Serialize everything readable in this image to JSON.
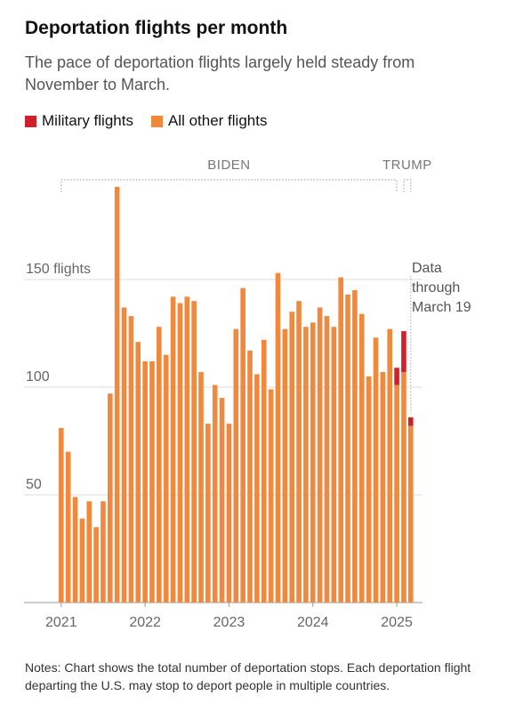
{
  "header": {
    "title": "Deportation flights per month",
    "subtitle": "The pace of deportation flights largely held steady from November to March."
  },
  "legend": [
    {
      "label": "Military flights",
      "color": "#d0202a"
    },
    {
      "label": "All other flights",
      "color": "#f0883e"
    }
  ],
  "colors": {
    "military": "#d0202a",
    "other": "#f0883e",
    "grid": "#dddddd",
    "bracket": "#aaaaaa",
    "axis_text": "#666666"
  },
  "periods": [
    {
      "label": "BIDEN",
      "start_index": 0,
      "end_index": 48
    },
    {
      "label": "TRUMP",
      "start_index": 49,
      "end_index": 50
    }
  ],
  "annotation": {
    "lines": [
      "Data",
      "through",
      "March 19"
    ],
    "index": 50
  },
  "notes": "Notes: Chart shows the total number of deportation stops. Each deportation flight departing the U.S. may stop to deport people in multiple countries.",
  "chart_data": {
    "type": "bar",
    "stacked": true,
    "x_start": "2021-01",
    "categories": [
      "2021-01",
      "2021-02",
      "2021-03",
      "2021-04",
      "2021-05",
      "2021-06",
      "2021-07",
      "2021-08",
      "2021-09",
      "2021-10",
      "2021-11",
      "2021-12",
      "2022-01",
      "2022-02",
      "2022-03",
      "2022-04",
      "2022-05",
      "2022-06",
      "2022-07",
      "2022-08",
      "2022-09",
      "2022-10",
      "2022-11",
      "2022-12",
      "2023-01",
      "2023-02",
      "2023-03",
      "2023-04",
      "2023-05",
      "2023-06",
      "2023-07",
      "2023-08",
      "2023-09",
      "2023-10",
      "2023-11",
      "2023-12",
      "2024-01",
      "2024-02",
      "2024-03",
      "2024-04",
      "2024-05",
      "2024-06",
      "2024-07",
      "2024-08",
      "2024-09",
      "2024-10",
      "2024-11",
      "2024-12",
      "2025-01",
      "2025-02",
      "2025-03"
    ],
    "series": [
      {
        "name": "All other flights",
        "color": "#f0883e",
        "values": [
          81,
          70,
          49,
          39,
          47,
          35,
          47,
          97,
          193,
          137,
          133,
          121,
          112,
          112,
          128,
          115,
          142,
          139,
          142,
          140,
          107,
          83,
          101,
          95,
          83,
          127,
          146,
          117,
          106,
          122,
          99,
          153,
          127,
          135,
          140,
          128,
          130,
          137,
          133,
          128,
          151,
          143,
          145,
          134,
          105,
          123,
          107,
          127,
          101,
          107,
          82
        ]
      },
      {
        "name": "Military flights",
        "color": "#d0202a",
        "values": [
          0,
          0,
          0,
          0,
          0,
          0,
          0,
          0,
          0,
          0,
          0,
          0,
          0,
          0,
          0,
          0,
          0,
          0,
          0,
          0,
          0,
          0,
          0,
          0,
          0,
          0,
          0,
          0,
          0,
          0,
          0,
          0,
          0,
          0,
          0,
          0,
          0,
          0,
          0,
          0,
          0,
          0,
          0,
          0,
          0,
          0,
          0,
          0,
          8,
          19,
          4
        ]
      }
    ],
    "y_ticks": [
      {
        "value": 50,
        "label": "50"
      },
      {
        "value": 100,
        "label": "100"
      },
      {
        "value": 150,
        "label": "150 flights"
      }
    ],
    "x_ticks": [
      {
        "index": 0,
        "label": "2021"
      },
      {
        "index": 12,
        "label": "2022"
      },
      {
        "index": 24,
        "label": "2023"
      },
      {
        "index": 36,
        "label": "2024"
      },
      {
        "index": 48,
        "label": "2025"
      }
    ],
    "ylim": [
      0,
      195
    ],
    "xlabel": "",
    "ylabel": "",
    "grid": true
  }
}
